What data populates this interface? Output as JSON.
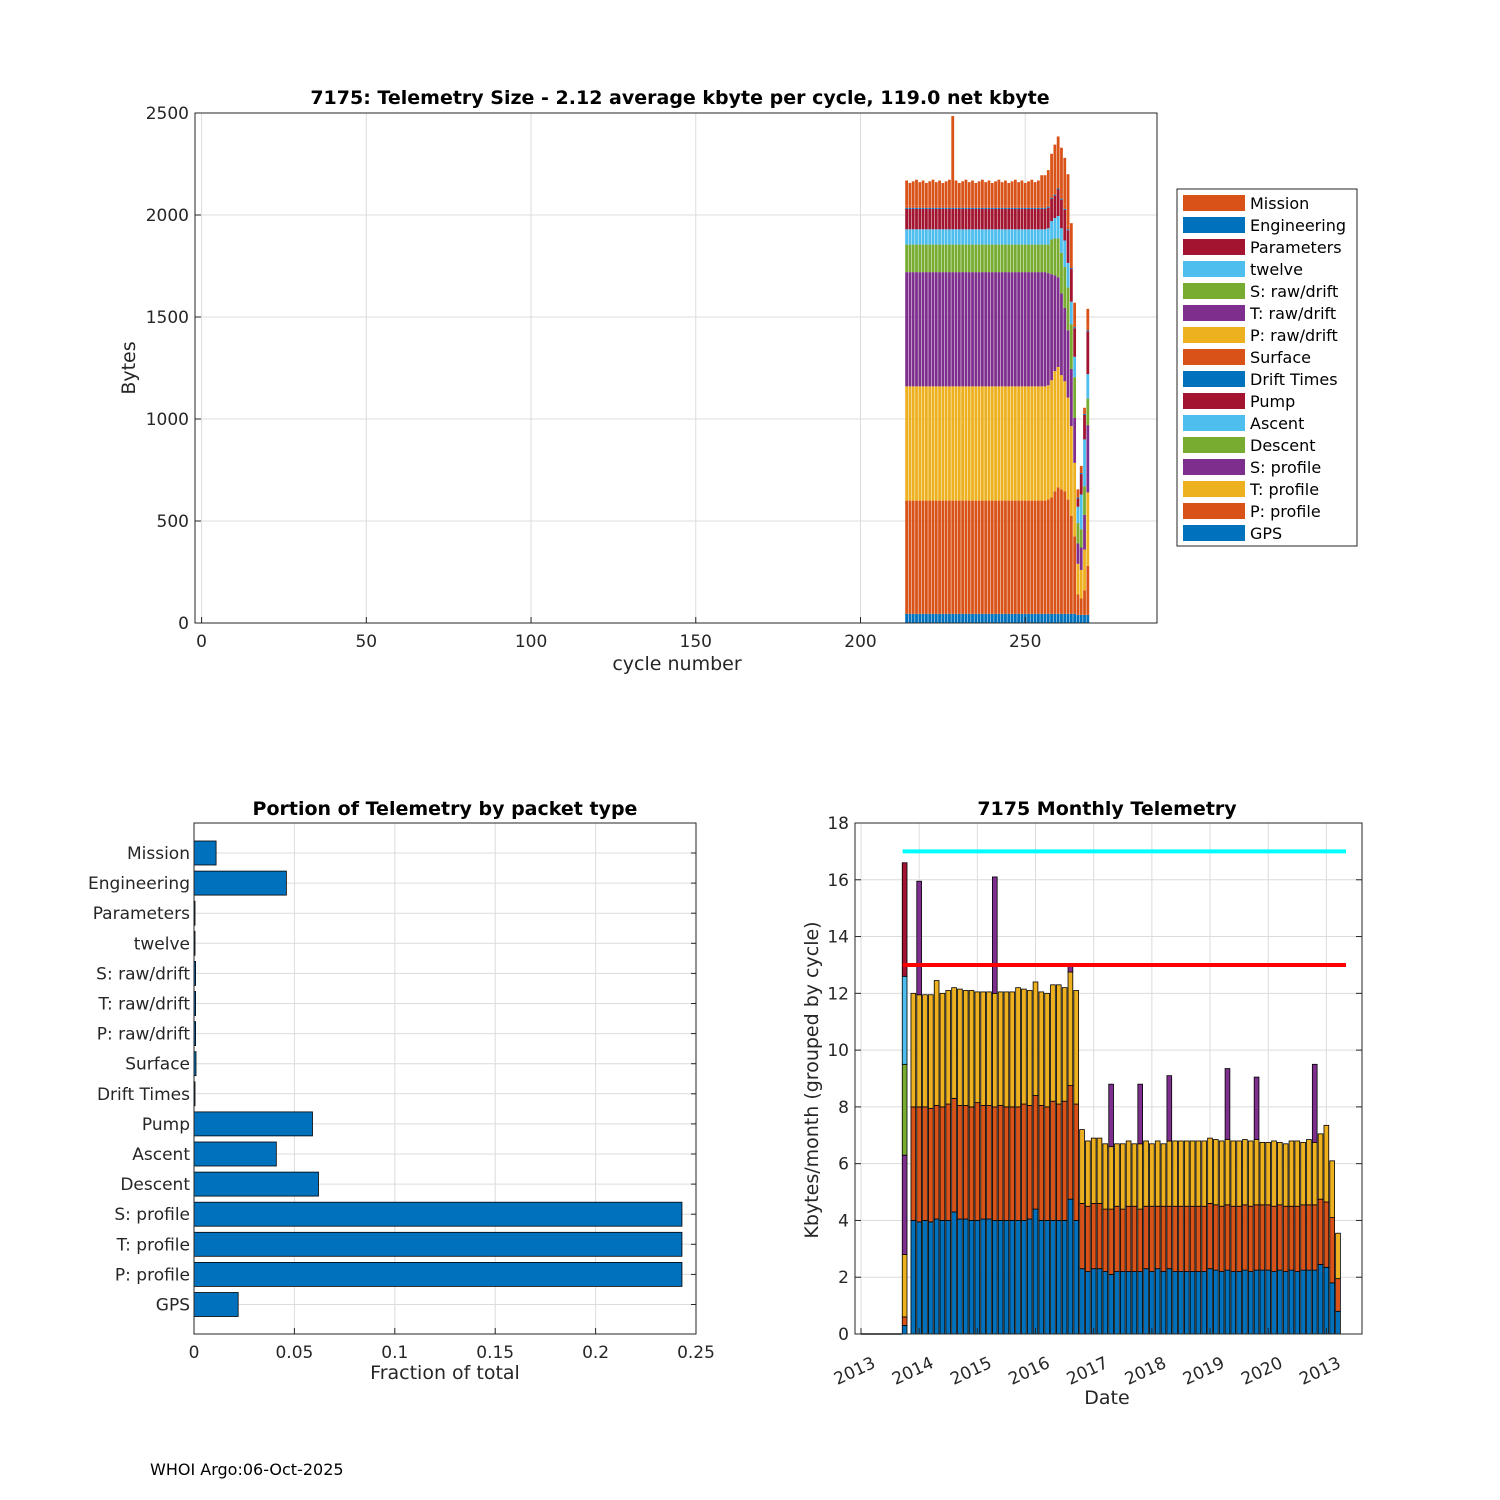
{
  "footer": "WHOI Argo:06-Oct-2025",
  "colors": {
    "orange": "#D95319",
    "blue": "#0072BD",
    "red": "#A2142F",
    "cyan": "#4DBEEE",
    "green": "#77AC30",
    "purple": "#7E2F8E",
    "yellow": "#EDB120",
    "limit_cyan": "#00FFFF",
    "limit_red": "#FF0000"
  },
  "chart_data": [
    {
      "id": "telemetry_size",
      "type": "bar",
      "stacked": true,
      "title": "7175: Telemetry Size - 2.12 average kbyte per cycle,  119.0 net kbyte",
      "xlabel": "cycle number",
      "ylabel": "Bytes",
      "xlim": [
        -2,
        290
      ],
      "ylim": [
        0,
        2500
      ],
      "xticks": [
        "0",
        "50",
        "100",
        "150",
        "200",
        "250"
      ],
      "xtick_values": [
        0,
        50,
        100,
        150,
        200,
        250
      ],
      "yticks": [
        "0",
        "500",
        "1000",
        "1500",
        "2000",
        "2500"
      ],
      "ytick_values": [
        0,
        500,
        1000,
        1500,
        2000,
        2500
      ],
      "legend_position": "outside-right",
      "legend": [
        "Mission",
        "Engineering",
        "Parameters",
        "twelve",
        "S: raw/drift",
        "T: raw/drift",
        "P: raw/drift",
        "Surface",
        "Drift Times",
        "Pump",
        "Ascent",
        "Descent",
        "S: profile",
        "T: profile",
        "P: profile",
        "GPS"
      ],
      "legend_colors": [
        "#D95319",
        "#0072BD",
        "#A2142F",
        "#4DBEEE",
        "#77AC30",
        "#7E2F8E",
        "#EDB120",
        "#D95319",
        "#0072BD",
        "#A2142F",
        "#4DBEEE",
        "#77AC30",
        "#7E2F8E",
        "#EDB120",
        "#D95319",
        "#0072BD"
      ],
      "stack_order": [
        "GPS",
        "P: profile",
        "T: profile",
        "S: profile",
        "Descent",
        "Ascent",
        "Pump",
        "Drift Times",
        "Surface",
        "Mission"
      ],
      "stack_colors": [
        "#0072BD",
        "#D95319",
        "#EDB120",
        "#7E2F8E",
        "#77AC30",
        "#4DBEEE",
        "#A2142F",
        "#0072BD",
        "#D95319",
        "#D95319"
      ],
      "cycle_start": 214,
      "cycle_end": 269,
      "typical_cycle": [
        45,
        555,
        560,
        560,
        135,
        75,
        100,
        5,
        10,
        120
      ],
      "special_cycles": {
        "228": [
          45,
          555,
          560,
          560,
          135,
          75,
          100,
          5,
          10,
          440
        ],
        "255": [
          45,
          555,
          560,
          560,
          135,
          75,
          100,
          5,
          10,
          150
        ],
        "256": [
          45,
          555,
          560,
          560,
          135,
          75,
          100,
          5,
          10,
          150
        ],
        "257": [
          45,
          560,
          560,
          550,
          140,
          80,
          100,
          5,
          10,
          170
        ],
        "258": [
          45,
          570,
          575,
          520,
          170,
          90,
          110,
          5,
          15,
          200
        ],
        "259": [
          45,
          600,
          590,
          470,
          180,
          100,
          110,
          5,
          15,
          230
        ],
        "260": [
          45,
          620,
          590,
          440,
          190,
          110,
          130,
          5,
          15,
          240
        ],
        "261": [
          45,
          610,
          560,
          400,
          200,
          120,
          140,
          5,
          20,
          230
        ],
        "262": [
          45,
          600,
          540,
          360,
          200,
          130,
          150,
          5,
          20,
          230
        ],
        "263": [
          45,
          560,
          500,
          330,
          210,
          120,
          160,
          5,
          20,
          250
        ],
        "264": [
          45,
          480,
          440,
          280,
          220,
          110,
          160,
          5,
          20,
          200
        ],
        "265": [
          45,
          380,
          360,
          220,
          200,
          100,
          140,
          5,
          20,
          100
        ],
        "266": [
          40,
          100,
          150,
          100,
          100,
          80,
          40,
          5,
          10,
          30
        ],
        "267": [
          40,
          80,
          140,
          110,
          90,
          170,
          100,
          5,
          10,
          25
        ],
        "268": [
          40,
          120,
          200,
          170,
          140,
          230,
          120,
          5,
          15,
          15
        ],
        "269": [
          40,
          240,
          360,
          330,
          130,
          120,
          210,
          5,
          20,
          85
        ]
      }
    },
    {
      "id": "portion_by_packet",
      "type": "bar",
      "orientation": "horizontal",
      "title": "Portion of Telemetry by packet type",
      "xlabel": "Fraction of total",
      "ylabel": "",
      "xlim": [
        0,
        0.25
      ],
      "xticks": [
        "0",
        "0.05",
        "0.1",
        "0.15",
        "0.2",
        "0.25"
      ],
      "xtick_values": [
        0,
        0.05,
        0.1,
        0.15,
        0.2,
        0.25
      ],
      "categories": [
        "Mission",
        "Engineering",
        "Parameters",
        "twelve",
        "S: raw/drift",
        "T: raw/drift",
        "P: raw/drift",
        "Surface",
        "Drift Times",
        "Pump",
        "Ascent",
        "Descent",
        "S: profile",
        "T: profile",
        "P: profile",
        "GPS"
      ],
      "values": [
        0.011,
        0.046,
        0.0005,
        0.0005,
        0.0008,
        0.0008,
        0.0008,
        0.001,
        0.0005,
        0.059,
        0.041,
        0.062,
        0.243,
        0.243,
        0.243,
        0.022
      ],
      "bar_color": "#0072BD"
    },
    {
      "id": "monthly_telemetry",
      "type": "bar",
      "stacked": true,
      "title": "7175 Monthly Telemetry",
      "xlabel": "Date",
      "ylabel": "Kbytes/month (grouped by cycle)",
      "ylim": [
        0,
        18
      ],
      "yticks": [
        "0",
        "2",
        "4",
        "6",
        "8",
        "10",
        "12",
        "14",
        "16",
        "18"
      ],
      "ytick_values": [
        0,
        2,
        4,
        6,
        8,
        10,
        12,
        14,
        16,
        18
      ],
      "xlim_months": [
        0,
        82
      ],
      "xticks": [
        "2013",
        "2014",
        "2015",
        "2016",
        "2017",
        "2018",
        "2019",
        "2020",
        "2013"
      ],
      "xtick_values": [
        0,
        10,
        20,
        30,
        40,
        50,
        60,
        70,
        80
      ],
      "reference_lines": [
        {
          "value": 17,
          "color": "#00FFFF"
        },
        {
          "value": 13,
          "color": "#FF0000"
        }
      ],
      "series_colors": [
        "#0072BD",
        "#D95319",
        "#EDB120",
        "#7E2F8E",
        "#77AC30",
        "#4DBEEE",
        "#A2142F"
      ],
      "bars": [
        {
          "m": 7.5,
          "v": [
            0.3,
            0.3,
            2.2,
            3.5,
            3.2,
            3.1,
            4.0
          ]
        },
        {
          "m": 9,
          "v": [
            4.0,
            4.0,
            4.0
          ]
        },
        {
          "m": 10,
          "v": [
            3.95,
            4.05,
            3.95,
            4.0
          ]
        },
        {
          "m": 11,
          "v": [
            4.0,
            4.0,
            3.95
          ]
        },
        {
          "m": 12,
          "v": [
            3.95,
            4.0,
            4.0
          ]
        },
        {
          "m": 13,
          "v": [
            4.05,
            4.0,
            4.4
          ]
        },
        {
          "m": 14,
          "v": [
            4.0,
            4.0,
            4.0
          ]
        },
        {
          "m": 15,
          "v": [
            4.0,
            4.1,
            4.0
          ]
        },
        {
          "m": 16,
          "v": [
            4.3,
            4.0,
            3.9
          ]
        },
        {
          "m": 17,
          "v": [
            4.05,
            4.0,
            4.1
          ]
        },
        {
          "m": 18,
          "v": [
            4.05,
            4.0,
            4.05
          ]
        },
        {
          "m": 19,
          "v": [
            4.0,
            4.0,
            4.1
          ]
        },
        {
          "m": 20,
          "v": [
            4.0,
            4.15,
            3.9
          ]
        },
        {
          "m": 21,
          "v": [
            4.05,
            4.0,
            4.0
          ]
        },
        {
          "m": 22,
          "v": [
            4.05,
            4.0,
            4.0
          ]
        },
        {
          "m": 23,
          "v": [
            4.0,
            4.0,
            4.0,
            4.1
          ]
        },
        {
          "m": 24,
          "v": [
            4.0,
            4.05,
            4.0
          ]
        },
        {
          "m": 25,
          "v": [
            4.0,
            4.0,
            4.05
          ]
        },
        {
          "m": 26,
          "v": [
            4.0,
            4.0,
            4.05
          ]
        },
        {
          "m": 27,
          "v": [
            4.0,
            4.0,
            4.2
          ]
        },
        {
          "m": 28,
          "v": [
            4.0,
            4.1,
            4.05
          ]
        },
        {
          "m": 29,
          "v": [
            4.05,
            4.0,
            4.05
          ]
        },
        {
          "m": 30,
          "v": [
            4.4,
            4.0,
            4.0
          ]
        },
        {
          "m": 31,
          "v": [
            4.0,
            4.05,
            4.0
          ]
        },
        {
          "m": 32,
          "v": [
            4.0,
            4.0,
            4.0
          ]
        },
        {
          "m": 33,
          "v": [
            4.0,
            4.2,
            4.1
          ]
        },
        {
          "m": 34,
          "v": [
            4.0,
            4.1,
            4.2
          ]
        },
        {
          "m": 35,
          "v": [
            4.0,
            4.2,
            4.0
          ]
        },
        {
          "m": 36,
          "v": [
            4.75,
            4.0,
            4.0,
            0.25
          ]
        },
        {
          "m": 37,
          "v": [
            4.0,
            4.1,
            4.0
          ]
        },
        {
          "m": 38,
          "v": [
            2.3,
            2.3,
            2.6
          ]
        },
        {
          "m": 39,
          "v": [
            2.2,
            2.3,
            2.3
          ]
        },
        {
          "m": 40,
          "v": [
            2.3,
            2.3,
            2.3
          ]
        },
        {
          "m": 41,
          "v": [
            2.3,
            2.3,
            2.3
          ]
        },
        {
          "m": 42,
          "v": [
            2.2,
            2.2,
            2.3
          ]
        },
        {
          "m": 43,
          "v": [
            2.1,
            2.3,
            2.2,
            2.2
          ]
        },
        {
          "m": 44,
          "v": [
            2.2,
            2.3,
            2.2
          ]
        },
        {
          "m": 45,
          "v": [
            2.2,
            2.2,
            2.3
          ]
        },
        {
          "m": 46,
          "v": [
            2.2,
            2.3,
            2.3
          ]
        },
        {
          "m": 47,
          "v": [
            2.2,
            2.3,
            2.2
          ]
        },
        {
          "m": 48,
          "v": [
            2.2,
            2.2,
            2.3,
            2.1
          ]
        },
        {
          "m": 49,
          "v": [
            2.3,
            2.2,
            2.3
          ]
        },
        {
          "m": 50,
          "v": [
            2.2,
            2.3,
            2.2
          ]
        },
        {
          "m": 51,
          "v": [
            2.3,
            2.2,
            2.3
          ]
        },
        {
          "m": 52,
          "v": [
            2.2,
            2.3,
            2.2
          ]
        },
        {
          "m": 53,
          "v": [
            2.3,
            2.2,
            2.3,
            2.3
          ]
        },
        {
          "m": 54,
          "v": [
            2.2,
            2.3,
            2.3
          ]
        },
        {
          "m": 55,
          "v": [
            2.2,
            2.3,
            2.3
          ]
        },
        {
          "m": 56,
          "v": [
            2.2,
            2.3,
            2.3
          ]
        },
        {
          "m": 57,
          "v": [
            2.2,
            2.3,
            2.3
          ]
        },
        {
          "m": 58,
          "v": [
            2.2,
            2.3,
            2.3
          ]
        },
        {
          "m": 59,
          "v": [
            2.2,
            2.3,
            2.3
          ]
        },
        {
          "m": 60,
          "v": [
            2.3,
            2.3,
            2.3
          ]
        },
        {
          "m": 61,
          "v": [
            2.25,
            2.3,
            2.3
          ]
        },
        {
          "m": 62,
          "v": [
            2.2,
            2.3,
            2.3
          ]
        },
        {
          "m": 63,
          "v": [
            2.25,
            2.3,
            2.3,
            2.5
          ]
        },
        {
          "m": 64,
          "v": [
            2.2,
            2.3,
            2.3
          ]
        },
        {
          "m": 65,
          "v": [
            2.2,
            2.3,
            2.3
          ]
        },
        {
          "m": 66,
          "v": [
            2.25,
            2.3,
            2.3
          ]
        },
        {
          "m": 67,
          "v": [
            2.2,
            2.3,
            2.3
          ]
        },
        {
          "m": 68,
          "v": [
            2.25,
            2.3,
            2.3,
            2.2
          ]
        },
        {
          "m": 69,
          "v": [
            2.25,
            2.3,
            2.2
          ]
        },
        {
          "m": 70,
          "v": [
            2.25,
            2.3,
            2.2
          ]
        },
        {
          "m": 71,
          "v": [
            2.2,
            2.3,
            2.3
          ]
        },
        {
          "m": 72,
          "v": [
            2.25,
            2.3,
            2.2
          ]
        },
        {
          "m": 73,
          "v": [
            2.2,
            2.3,
            2.2
          ]
        },
        {
          "m": 74,
          "v": [
            2.25,
            2.25,
            2.3
          ]
        },
        {
          "m": 75,
          "v": [
            2.2,
            2.3,
            2.3
          ]
        },
        {
          "m": 76,
          "v": [
            2.25,
            2.3,
            2.2
          ]
        },
        {
          "m": 77,
          "v": [
            2.25,
            2.3,
            2.3
          ]
        },
        {
          "m": 78,
          "v": [
            2.25,
            2.3,
            2.2,
            2.75
          ]
        },
        {
          "m": 79,
          "v": [
            2.45,
            2.3,
            2.3
          ]
        },
        {
          "m": 80,
          "v": [
            2.35,
            2.3,
            2.7
          ]
        },
        {
          "m": 81,
          "v": [
            1.8,
            2.3,
            2.0
          ]
        },
        {
          "m": 82,
          "v": [
            0.8,
            1.15,
            1.6
          ]
        }
      ],
      "line_under": {
        "from": 0,
        "to": 7
      }
    }
  ]
}
